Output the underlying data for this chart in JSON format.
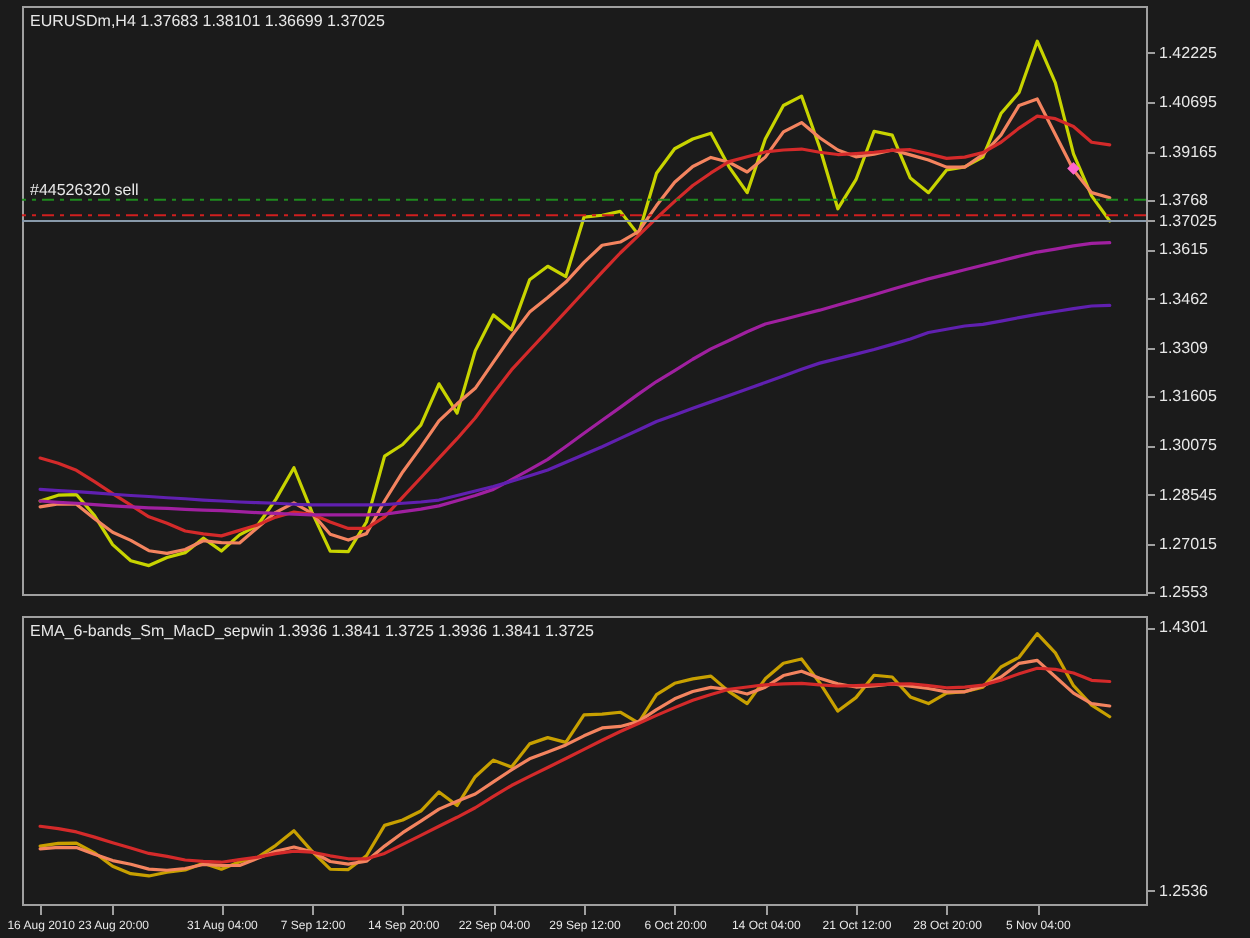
{
  "chart_data": [
    {
      "type": "line",
      "title": "EURUSDm,H4  1.37683 1.38101 1.36699 1.37025",
      "categories": [
        null,
        null,
        null,
        null,
        null,
        null,
        null,
        null,
        null,
        null,
        null,
        null,
        null,
        null,
        null,
        null,
        null,
        null,
        null,
        null,
        null,
        null,
        null,
        null,
        null,
        null,
        null,
        null,
        null,
        null,
        null,
        null,
        null,
        null,
        null,
        null,
        null,
        null,
        null,
        null,
        null,
        null,
        null,
        null,
        null,
        null,
        null,
        null,
        null,
        null,
        null,
        null,
        null,
        null,
        null,
        null,
        null,
        null,
        null,
        null,
        null
      ],
      "ylim": [
        1.2547,
        1.4368
      ],
      "yticks": [
        1.42225,
        1.40695,
        1.39165,
        1.3768,
        1.37025,
        1.3615,
        1.3462,
        1.3309,
        1.31605,
        1.30075,
        1.28545,
        1.27015,
        1.2553
      ],
      "tick_labels": "y",
      "grid": false,
      "legend": false,
      "ref_lines": [
        {
          "axis": "y",
          "value": 1.3768,
          "color": "#1f8a1f",
          "line_style": "dashed"
        },
        {
          "axis": "y",
          "value": 1.372,
          "label": "#44526320 sell",
          "color": "#d01f1f",
          "line_style": "dashed"
        },
        {
          "axis": "y",
          "value": 1.37025,
          "color": "#8899aa",
          "line_style": "solid"
        }
      ],
      "series": [
        {
          "color": "#c8d400",
          "values": [
            1.2835,
            1.2853,
            1.2855,
            1.279,
            1.27,
            1.265,
            1.2635,
            1.266,
            1.2675,
            1.272,
            1.268,
            1.273,
            1.276,
            1.284,
            1.2938,
            1.28,
            1.268,
            1.2678,
            1.277,
            1.2974,
            1.301,
            1.307,
            1.3198,
            1.3107,
            1.33,
            1.3411,
            1.3365,
            1.352,
            1.3562,
            1.353,
            1.3714,
            1.372,
            1.3732,
            1.366,
            1.385,
            1.3926,
            1.3956,
            1.3974,
            1.387,
            1.379,
            1.3956,
            1.406,
            1.4089,
            1.393,
            1.374,
            1.383,
            1.398,
            1.3968,
            1.3835,
            1.379,
            1.386,
            1.387,
            1.39,
            1.4035,
            1.41,
            1.4259,
            1.413,
            1.391,
            1.378,
            1.3702,
            null
          ]
        },
        {
          "color": "#f4845f",
          "values": [
            1.2817,
            1.2826,
            1.2825,
            1.278,
            1.2738,
            1.2713,
            1.2681,
            1.2673,
            1.2685,
            1.2712,
            1.2706,
            1.2705,
            1.2753,
            1.28,
            1.2829,
            1.2797,
            1.2732,
            1.2714,
            1.2734,
            1.2835,
            1.2925,
            1.3002,
            1.3083,
            1.3136,
            1.3184,
            1.3265,
            1.3346,
            1.342,
            1.3465,
            1.3513,
            1.3574,
            1.3627,
            1.3637,
            1.3669,
            1.375,
            1.3822,
            1.3871,
            1.3899,
            1.3884,
            1.3854,
            1.39,
            1.3978,
            1.4007,
            1.396,
            1.3922,
            1.3901,
            1.3909,
            1.3922,
            1.3907,
            1.3891,
            1.3869,
            1.3869,
            1.3908,
            1.3968,
            1.406,
            1.408,
            1.397,
            1.386,
            1.379,
            1.3774,
            null
          ]
        },
        {
          "color": "#d42a2a",
          "values": [
            1.2968,
            1.2952,
            1.293,
            1.2895,
            1.2858,
            1.2822,
            1.2786,
            1.2766,
            1.2742,
            1.2733,
            1.2727,
            1.2744,
            1.2761,
            1.2785,
            1.2801,
            1.2794,
            1.277,
            1.275,
            1.275,
            1.2786,
            1.2847,
            1.2907,
            1.2968,
            1.3028,
            1.3092,
            1.3168,
            1.3241,
            1.3302,
            1.3362,
            1.3422,
            1.3483,
            1.3544,
            1.3603,
            1.3657,
            1.3711,
            1.3763,
            1.3812,
            1.3851,
            1.3886,
            1.3901,
            1.3916,
            1.3922,
            1.3925,
            1.3915,
            1.3908,
            1.3911,
            1.3915,
            1.3921,
            1.3923,
            1.391,
            1.3896,
            1.39,
            1.3914,
            1.3946,
            1.399,
            1.4027,
            1.4019,
            1.3995,
            1.3946,
            1.3938,
            null
          ]
        },
        {
          "color": "#a020a0",
          "values": [
            1.2835,
            1.2831,
            1.2828,
            1.2824,
            1.282,
            1.2817,
            1.2814,
            1.2812,
            1.2809,
            1.2807,
            1.2805,
            1.2802,
            1.2799,
            1.2797,
            1.2794,
            1.2792,
            1.2792,
            1.2792,
            1.2792,
            1.2794,
            1.2802,
            1.281,
            1.282,
            1.2836,
            1.2852,
            1.2871,
            1.2901,
            1.2932,
            1.2964,
            1.3004,
            1.3045,
            1.3085,
            1.3125,
            1.3166,
            1.3205,
            1.3239,
            1.3274,
            1.3306,
            1.3332,
            1.3359,
            1.3383,
            1.3397,
            1.3412,
            1.3426,
            1.3442,
            1.3458,
            1.3474,
            1.3491,
            1.3507,
            1.3523,
            1.3537,
            1.3551,
            1.3565,
            1.3579,
            1.3593,
            1.3606,
            1.3615,
            1.3625,
            1.3633,
            1.3635,
            null
          ]
        },
        {
          "color": "#6020b0",
          "values": [
            1.2871,
            1.2867,
            1.2864,
            1.286,
            1.2856,
            1.2852,
            1.2849,
            1.2845,
            1.2842,
            1.2838,
            1.2835,
            1.2832,
            1.283,
            1.2828,
            1.2825,
            1.2823,
            1.2823,
            1.2823,
            1.2823,
            1.2824,
            1.2828,
            1.2832,
            1.2838,
            1.2852,
            1.2866,
            1.288,
            1.2896,
            1.2913,
            1.2931,
            1.2955,
            1.2979,
            1.3003,
            1.3029,
            1.3055,
            1.3081,
            1.3101,
            1.3122,
            1.3142,
            1.3162,
            1.3182,
            1.3202,
            1.3222,
            1.3243,
            1.3262,
            1.3276,
            1.329,
            1.3304,
            1.332,
            1.3337,
            1.3357,
            1.3367,
            1.3377,
            1.3382,
            1.3392,
            1.3403,
            1.3413,
            1.3422,
            1.3431,
            1.3439,
            1.3441,
            null
          ]
        },
        {
          "type": "scatter",
          "color": "#ff66cc",
          "values": [
            null,
            null,
            null,
            null,
            null,
            null,
            null,
            null,
            null,
            null,
            null,
            null,
            null,
            null,
            null,
            null,
            null,
            null,
            null,
            null,
            null,
            null,
            null,
            null,
            null,
            null,
            null,
            null,
            null,
            null,
            null,
            null,
            null,
            null,
            null,
            null,
            null,
            null,
            null,
            null,
            null,
            null,
            null,
            null,
            null,
            null,
            null,
            null,
            null,
            null,
            null,
            null,
            null,
            null,
            null,
            null,
            null,
            1.3865,
            null,
            null,
            null
          ]
        }
      ]
    },
    {
      "type": "line",
      "title": "EMA_6-bands_Sm_MacD_sepwin 1.3936 1.3841 1.3725 1.3936 1.3841 1.3725",
      "categories": [
        "16 Aug 2010",
        null,
        null,
        null,
        "23 Aug 20:00",
        null,
        null,
        null,
        null,
        null,
        "31 Aug 04:00",
        null,
        null,
        null,
        null,
        "7 Sep 12:00",
        null,
        null,
        null,
        null,
        "14 Sep 20:00",
        null,
        null,
        null,
        null,
        "22 Sep 04:00",
        null,
        null,
        null,
        null,
        "29 Sep 12:00",
        null,
        null,
        null,
        null,
        "6 Oct 20:00",
        null,
        null,
        null,
        null,
        "14 Oct 04:00",
        null,
        null,
        null,
        null,
        "21 Oct 12:00",
        null,
        null,
        null,
        null,
        "28 Oct 20:00",
        null,
        null,
        null,
        null,
        "5 Nov 04:00",
        null,
        null,
        null,
        null,
        null
      ],
      "ylim": [
        1.2447,
        1.4377
      ],
      "yticks": [
        1.4301,
        1.2536
      ],
      "grid": false,
      "legend": false,
      "series": [
        {
          "color": "#c8a000",
          "values": [
            1.2835,
            1.2853,
            1.2855,
            1.279,
            1.27,
            1.265,
            1.2635,
            1.266,
            1.2675,
            1.272,
            1.268,
            1.273,
            1.276,
            1.284,
            1.2938,
            1.28,
            1.268,
            1.2678,
            1.277,
            1.2974,
            1.301,
            1.307,
            1.3198,
            1.3107,
            1.33,
            1.3411,
            1.3365,
            1.352,
            1.3562,
            1.353,
            1.3714,
            1.372,
            1.3732,
            1.366,
            1.385,
            1.3926,
            1.3956,
            1.3974,
            1.387,
            1.379,
            1.3956,
            1.406,
            1.4089,
            1.393,
            1.374,
            1.383,
            1.398,
            1.3968,
            1.3835,
            1.379,
            1.386,
            1.387,
            1.39,
            1.4035,
            1.41,
            1.4259,
            1.413,
            1.391,
            1.378,
            1.3702,
            null
          ]
        },
        {
          "color": "#f4845f",
          "values": [
            1.2817,
            1.2826,
            1.2825,
            1.278,
            1.2738,
            1.2713,
            1.2681,
            1.2673,
            1.2685,
            1.2712,
            1.2706,
            1.2705,
            1.2753,
            1.28,
            1.2829,
            1.2797,
            1.2732,
            1.2714,
            1.2734,
            1.2835,
            1.2925,
            1.3002,
            1.3083,
            1.3136,
            1.3184,
            1.3265,
            1.3346,
            1.342,
            1.3465,
            1.3513,
            1.3574,
            1.3627,
            1.3637,
            1.3669,
            1.375,
            1.3822,
            1.3871,
            1.3899,
            1.3884,
            1.3854,
            1.39,
            1.3978,
            1.4007,
            1.396,
            1.3922,
            1.3901,
            1.3909,
            1.3922,
            1.3907,
            1.3891,
            1.3869,
            1.3869,
            1.3908,
            1.3968,
            1.406,
            1.408,
            1.397,
            1.386,
            1.379,
            1.3774,
            null
          ]
        },
        {
          "color": "#d42a2a",
          "values": [
            1.2968,
            1.2952,
            1.293,
            1.2895,
            1.2858,
            1.2822,
            1.2786,
            1.2766,
            1.2742,
            1.2733,
            1.2727,
            1.2744,
            1.2761,
            1.2785,
            1.2801,
            1.2794,
            1.277,
            1.275,
            1.275,
            1.2786,
            1.2847,
            1.2907,
            1.2968,
            1.3028,
            1.3092,
            1.3168,
            1.3241,
            1.3302,
            1.3362,
            1.3422,
            1.3483,
            1.3544,
            1.3603,
            1.3657,
            1.3711,
            1.3763,
            1.3812,
            1.3851,
            1.3886,
            1.3901,
            1.3916,
            1.3922,
            1.3925,
            1.3915,
            1.3908,
            1.3911,
            1.3915,
            1.3921,
            1.3923,
            1.391,
            1.3896,
            1.39,
            1.3914,
            1.3946,
            1.399,
            1.4027,
            1.4019,
            1.3995,
            1.3946,
            1.3938,
            null
          ]
        }
      ]
    }
  ]
}
